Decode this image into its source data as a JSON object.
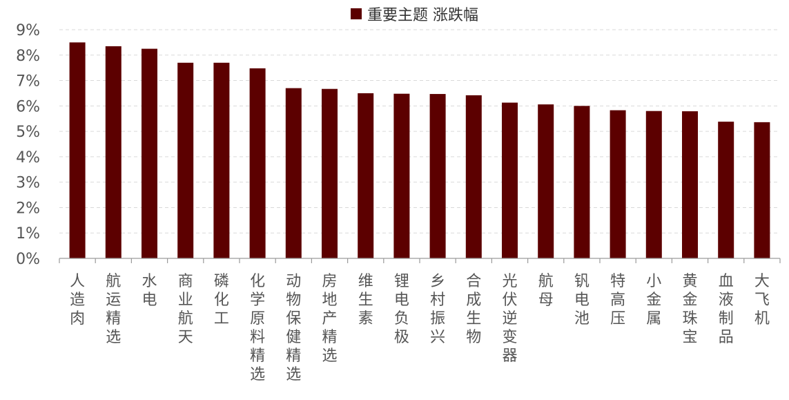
{
  "chart_data": {
    "type": "bar",
    "title": "",
    "xlabel": "",
    "ylabel": "",
    "ylim": [
      0,
      9
    ],
    "yticks": [
      "0%",
      "1%",
      "2%",
      "3%",
      "4%",
      "5%",
      "6%",
      "7%",
      "8%",
      "9%"
    ],
    "grid": true,
    "legend_position": "top",
    "categories": [
      "人造肉",
      "航运精选",
      "水电",
      "商业航天",
      "磷化工",
      "化学原料精选",
      "动物保健精选",
      "房地产精选",
      "维生素",
      "锂电负极",
      "乡村振兴",
      "合成生物",
      "光伏逆变器",
      "航母",
      "钒电池",
      "特高压",
      "小金属",
      "黄金珠宝",
      "血液制品",
      "大飞机"
    ],
    "series": [
      {
        "name": "重要主题 涨跌幅",
        "color": "#5c0000",
        "values": [
          8.5,
          8.35,
          8.25,
          7.7,
          7.7,
          7.48,
          6.7,
          6.67,
          6.5,
          6.48,
          6.47,
          6.42,
          6.13,
          6.06,
          6.0,
          5.83,
          5.8,
          5.79,
          5.38,
          5.36
        ]
      }
    ]
  }
}
